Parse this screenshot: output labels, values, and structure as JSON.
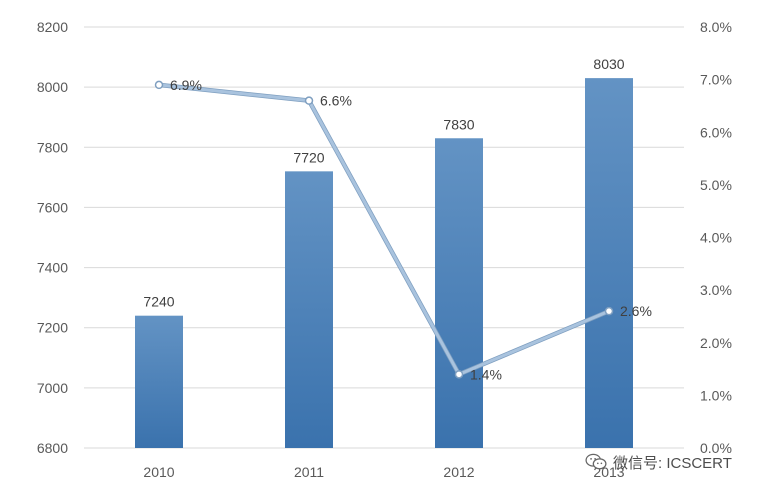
{
  "chart_data": {
    "type": "bar+line",
    "categories": [
      "2010",
      "2011",
      "2012",
      "2013"
    ],
    "series": [
      {
        "type": "bar",
        "axis": "left",
        "values": [
          7240,
          7720,
          7830,
          8030
        ],
        "labels": [
          "7240",
          "7720",
          "7830",
          "8030"
        ]
      },
      {
        "type": "line",
        "axis": "right",
        "values": [
          6.9,
          6.6,
          1.4,
          2.6
        ],
        "labels": [
          "6.9%",
          "6.6%",
          "1.4%",
          "2.6%"
        ]
      }
    ],
    "y_left": {
      "min": 6800,
      "max": 8200,
      "step": 200,
      "ticks": [
        "6800",
        "7000",
        "7200",
        "7400",
        "7600",
        "7800",
        "8000",
        "8200"
      ]
    },
    "y_right": {
      "min": 0,
      "max": 8,
      "step": 1,
      "ticks": [
        "0.0%",
        "1.0%",
        "2.0%",
        "3.0%",
        "4.0%",
        "5.0%",
        "6.0%",
        "7.0%",
        "8.0%"
      ]
    },
    "grid": true,
    "colors": {
      "bar_top": "#6393c4",
      "bar_bottom": "#3a72ad",
      "line": "#a9c3de",
      "line_edge": "#7f9fc0",
      "grid": "#d9d9d9"
    }
  },
  "watermark": {
    "text": "微信号: ICSCERT",
    "icon": "wechat-icon"
  }
}
